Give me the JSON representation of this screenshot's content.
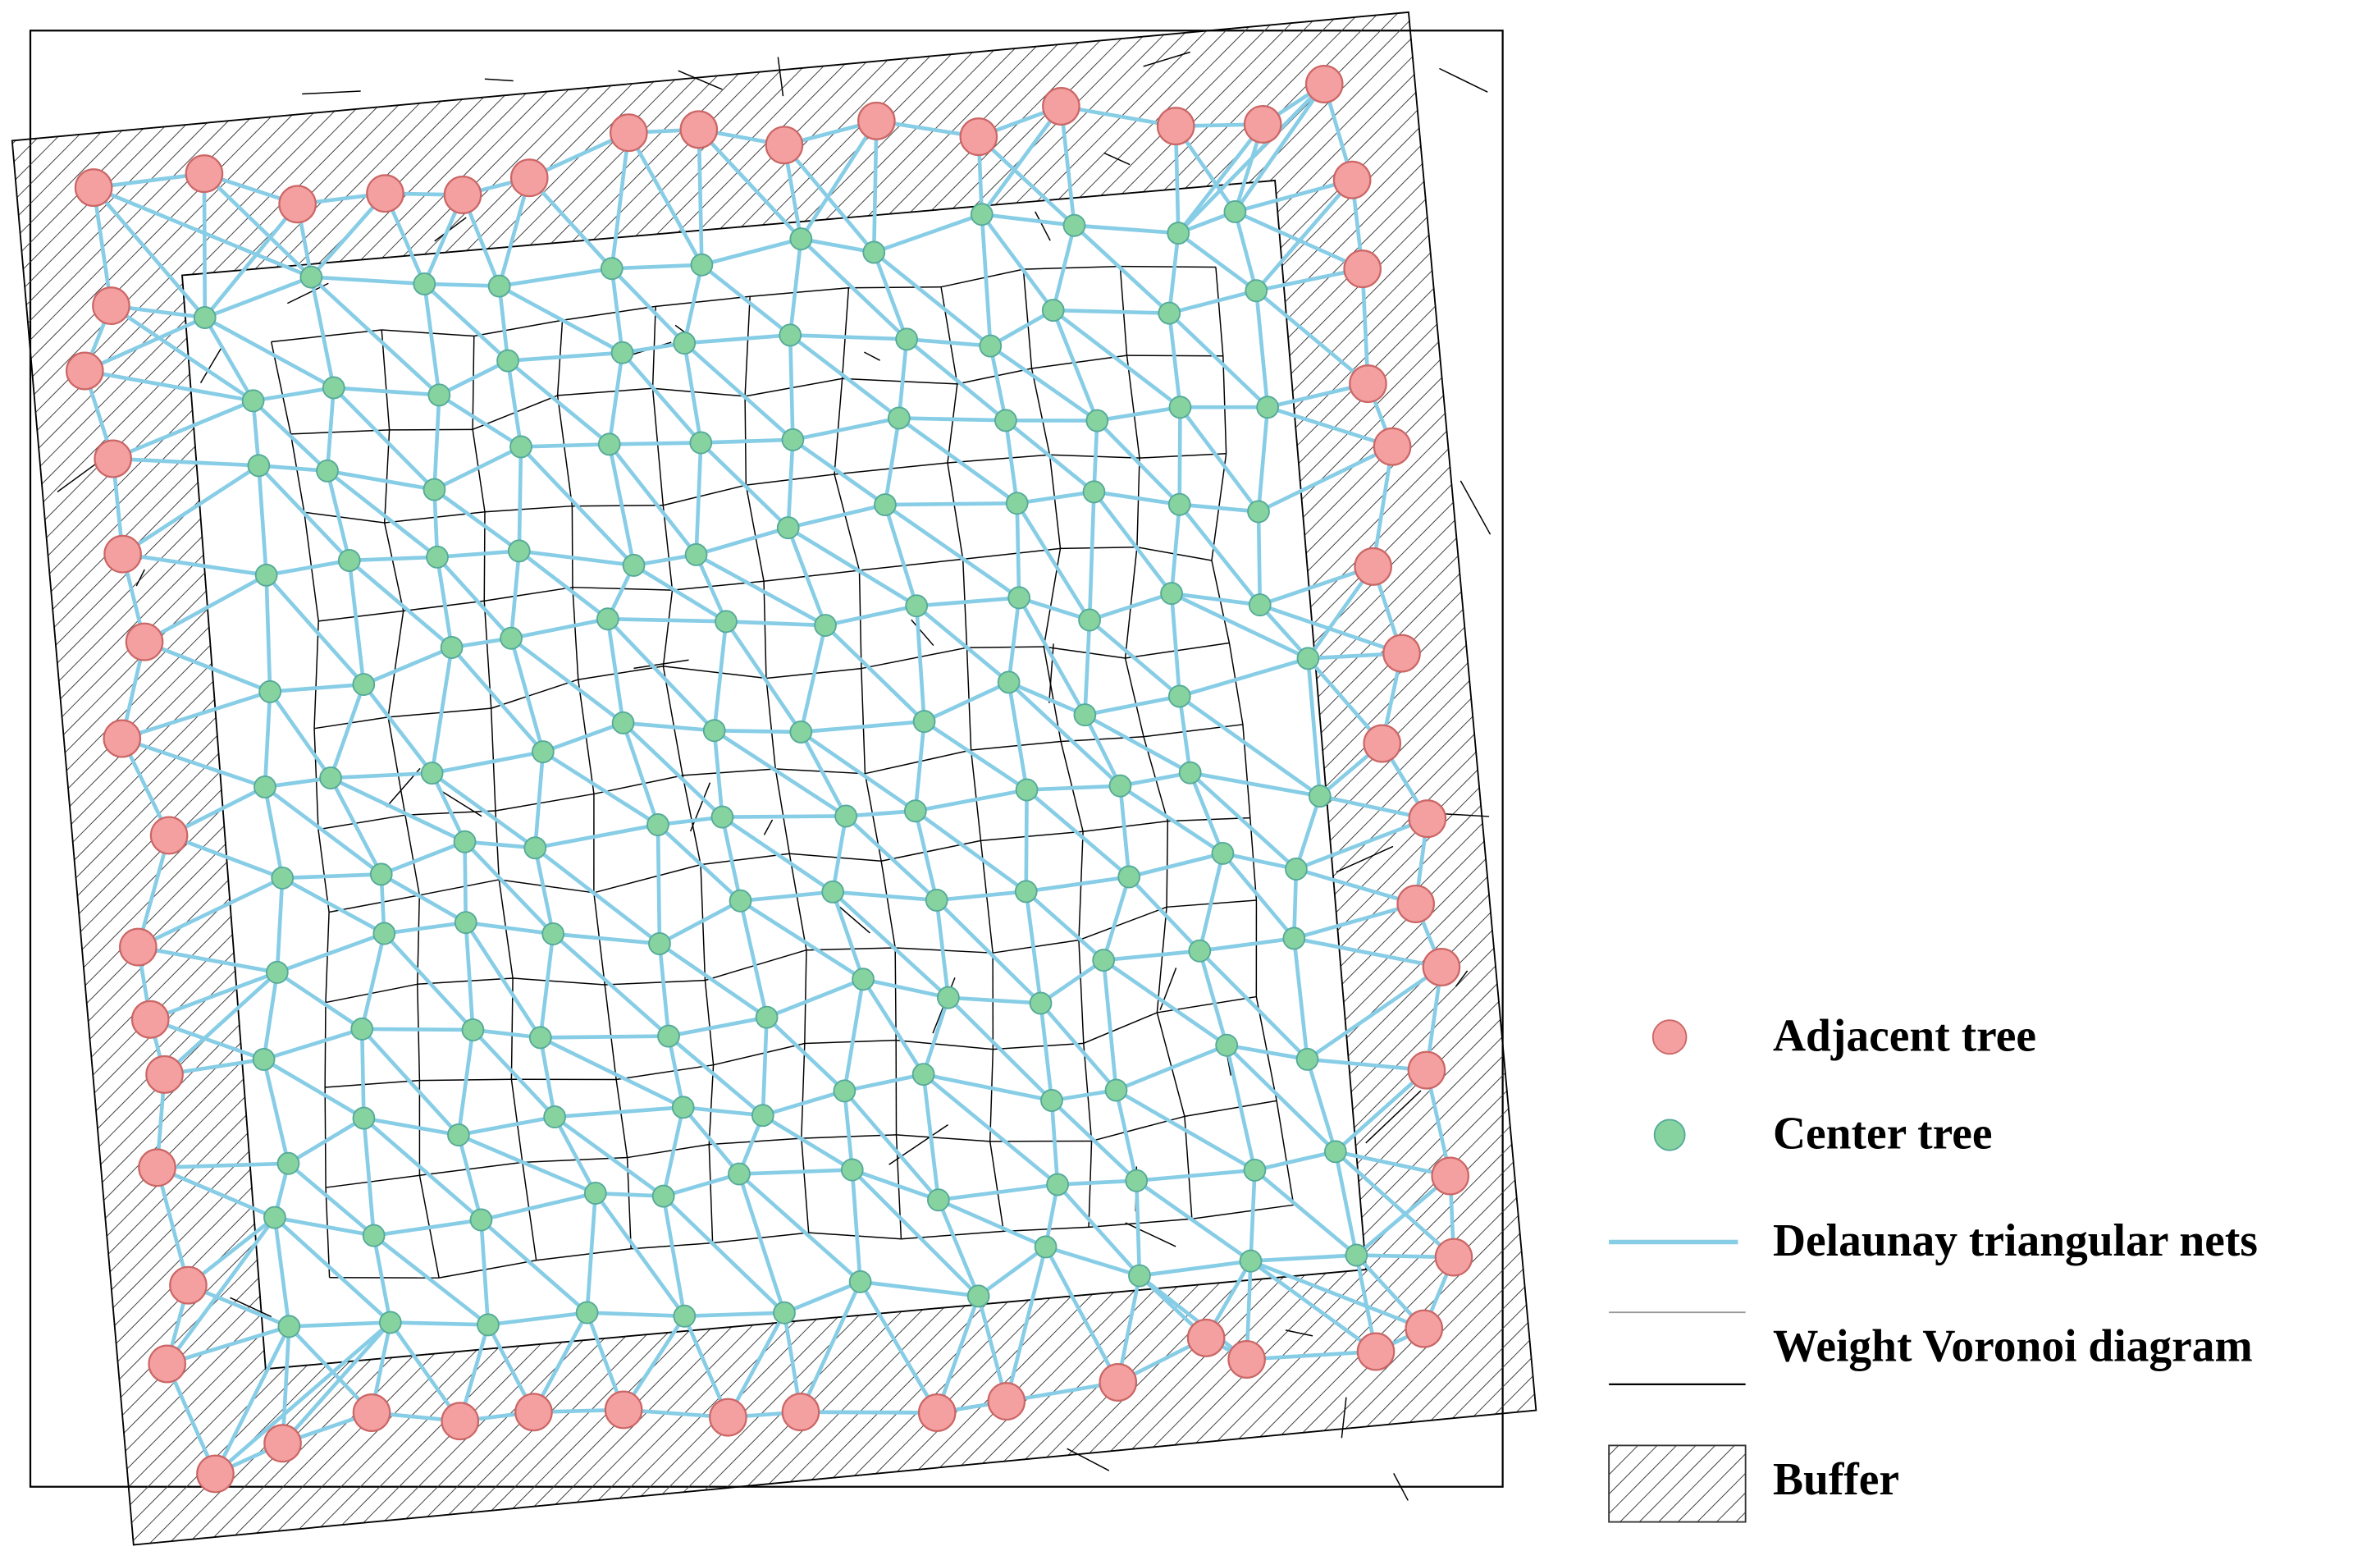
{
  "legend": [
    "Adjacent tree",
    "Center tree",
    "Delaunay triangular nets",
    "Weight Voronoi diagram",
    "Buffer"
  ]
}
